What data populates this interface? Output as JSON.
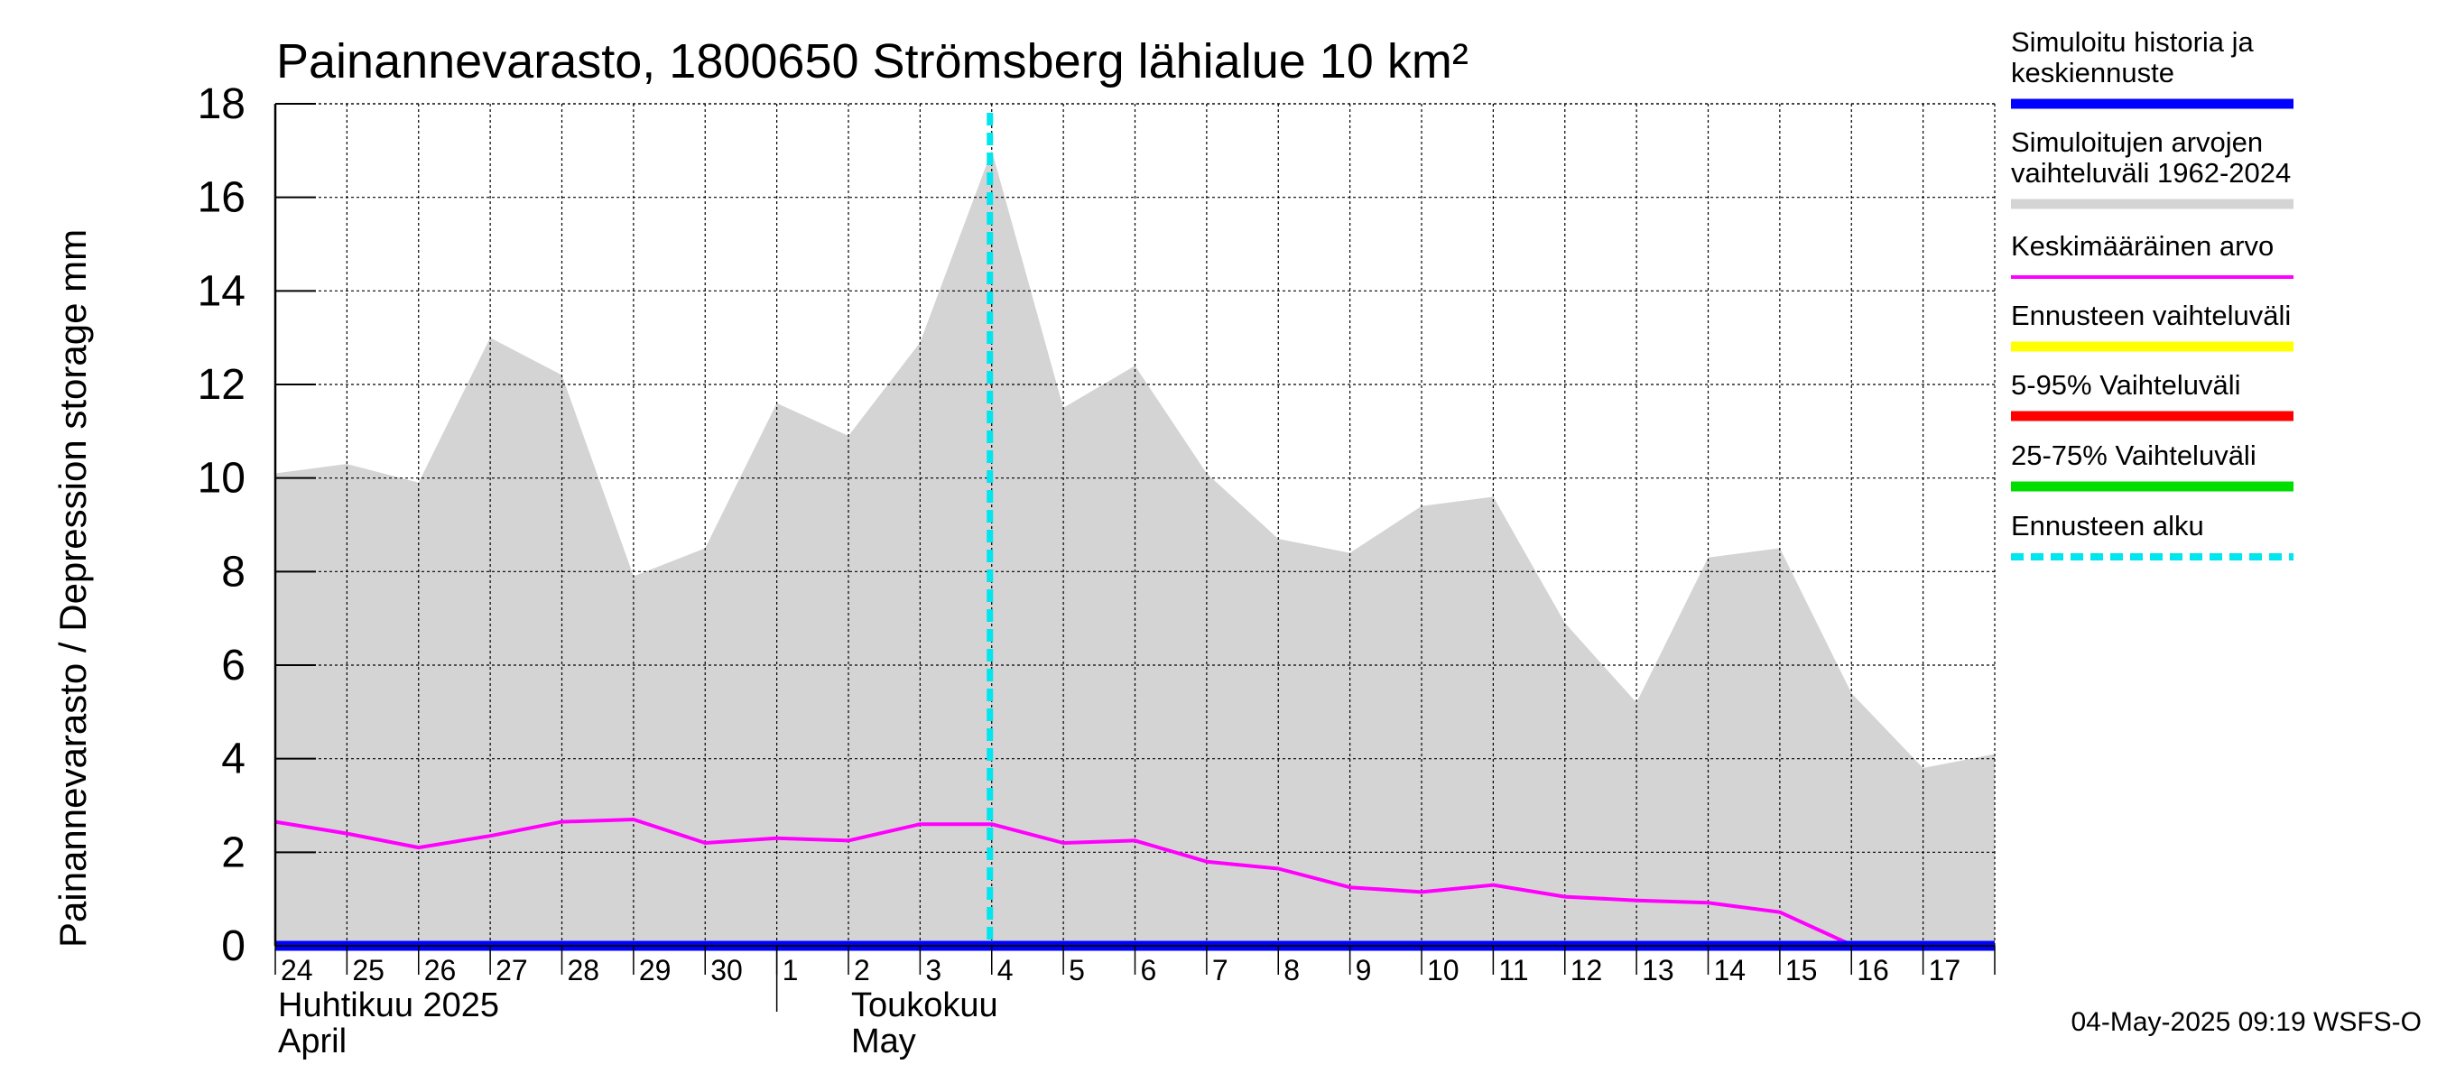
{
  "chart_data": {
    "type": "area",
    "title": "Painannevarasto, 1800650 Strömsberg lähialue 10 km²",
    "ylabel": "Painannevarasto / Depression storage    mm",
    "ylim": [
      0,
      18
    ],
    "yticks": [
      "0",
      "2",
      "4",
      "6",
      "8",
      "10",
      "12",
      "14",
      "16",
      "18"
    ],
    "grid": true,
    "x": [
      "2025-04-24",
      "2025-04-25",
      "2025-04-26",
      "2025-04-27",
      "2025-04-28",
      "2025-04-29",
      "2025-04-30",
      "2025-05-01",
      "2025-05-02",
      "2025-05-03",
      "2025-05-04",
      "2025-05-05",
      "2025-05-06",
      "2025-05-07",
      "2025-05-08",
      "2025-05-09",
      "2025-05-10",
      "2025-05-11",
      "2025-05-12",
      "2025-05-13",
      "2025-05-14",
      "2025-05-15",
      "2025-05-16",
      "2025-05-17",
      "2025-05-18"
    ],
    "xtick_labels": [
      "24",
      "25",
      "26",
      "27",
      "28",
      "29",
      "30",
      "1",
      "2",
      "3",
      "4",
      "5",
      "6",
      "7",
      "8",
      "9",
      "10",
      "11",
      "12",
      "13",
      "14",
      "15",
      "16",
      "17"
    ],
    "month_labels": [
      {
        "line1": "Huhtikuu  2025",
        "line2": "April"
      },
      {
        "line1": "Toukokuu",
        "line2": "May"
      }
    ],
    "series": [
      {
        "name": "Simuloitujen arvojen vaihteluväli 1962-2024",
        "color": "#d4d4d4",
        "kind": "band",
        "upper": [
          10.1,
          10.3,
          9.9,
          13.0,
          12.2,
          7.9,
          8.5,
          11.6,
          10.9,
          12.9,
          17.0,
          11.5,
          12.4,
          10.1,
          8.7,
          8.4,
          9.4,
          9.6,
          6.9,
          5.2,
          8.3,
          8.5,
          5.4,
          3.8,
          4.1
        ],
        "lower": [
          0,
          0,
          0,
          0,
          0,
          0,
          0,
          0,
          0,
          0,
          0,
          0,
          0,
          0,
          0,
          0,
          0,
          0,
          0,
          0,
          0,
          0,
          0,
          0,
          0
        ]
      },
      {
        "name": "Keskimääräinen arvo",
        "color": "#ff00ff",
        "kind": "line",
        "values": [
          2.65,
          2.4,
          2.1,
          2.35,
          2.65,
          2.7,
          2.2,
          2.3,
          2.25,
          2.6,
          2.6,
          2.2,
          2.25,
          1.8,
          1.65,
          1.25,
          1.15,
          1.3,
          1.05,
          0.97,
          0.92,
          0.72,
          0.02,
          0.02,
          0.02
        ]
      },
      {
        "name": "Simuloitu historia ja keskiennuste",
        "color": "#0000ff",
        "kind": "line",
        "values": [
          0,
          0,
          0,
          0,
          0,
          0,
          0,
          0,
          0,
          0,
          0,
          0,
          0,
          0,
          0,
          0,
          0,
          0,
          0,
          0,
          0,
          0,
          0,
          0,
          0
        ]
      }
    ],
    "forecast_start": "2025-05-04",
    "legend": {
      "placement": "right",
      "items": [
        {
          "lines": [
            "Simuloitu historia ja",
            "keskiennuste"
          ],
          "color": "#0000ff",
          "style": "solid"
        },
        {
          "lines": [
            "Simuloitujen arvojen",
            "vaihteluväli 1962-2024"
          ],
          "color": "#d4d4d4",
          "style": "solid"
        },
        {
          "lines": [
            "Keskimääräinen arvo"
          ],
          "color": "#ff00ff",
          "style": "thin"
        },
        {
          "lines": [
            "Ennusteen vaihteluväli"
          ],
          "color": "#ffff00",
          "style": "solid"
        },
        {
          "lines": [
            "5-95% Vaihteluväli"
          ],
          "color": "#ff0000",
          "style": "solid"
        },
        {
          "lines": [
            "25-75% Vaihteluväli"
          ],
          "color": "#00dd00",
          "style": "solid"
        },
        {
          "lines": [
            "Ennusteen alku"
          ],
          "color": "#00e5ee",
          "style": "dashed"
        }
      ]
    }
  },
  "footer": {
    "timestamp": "04-May-2025 09:19 WSFS-O"
  }
}
